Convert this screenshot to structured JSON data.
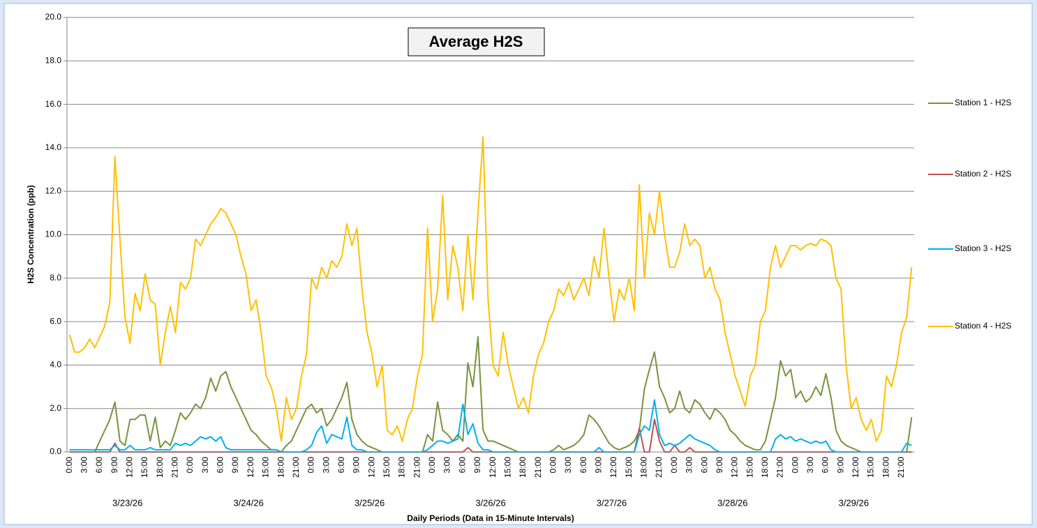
{
  "chart_data": {
    "type": "line",
    "title": "Average H2S",
    "y_label": "H2S Concentration (ppb)",
    "x_label": "Daily Periods (Data in 15-Minute Intervals)",
    "categories": [
      "0:00",
      null,
      null,
      "3:00",
      null,
      null,
      "6:00",
      null,
      null,
      "9:00",
      null,
      null,
      "12:00",
      null,
      null,
      "15:00",
      null,
      null,
      "18:00",
      null,
      null,
      "21:00",
      null,
      null,
      "0:00",
      null,
      null,
      "3:00",
      null,
      null,
      "6:00",
      null,
      null,
      "9:00",
      null,
      null,
      "12:00",
      null,
      null,
      "15:00",
      null,
      null,
      "18:00",
      null,
      null,
      "21:00",
      null,
      null,
      "0:00",
      null,
      null,
      "3:00",
      null,
      null,
      "6:00",
      null,
      null,
      "9:00",
      null,
      null,
      "12:00",
      null,
      null,
      "15:00",
      null,
      null,
      "18:00",
      null,
      null,
      "21:00",
      null,
      null,
      "0:00",
      null,
      null,
      "3:00",
      null,
      null,
      "6:00",
      null,
      null,
      "9:00",
      null,
      null,
      "12:00",
      null,
      null,
      "15:00",
      null,
      null,
      "18:00",
      null,
      null,
      "21:00",
      null,
      null,
      "0:00",
      null,
      null,
      "3:00",
      null,
      null,
      "6:00",
      null,
      null,
      "9:00",
      null,
      null,
      "12:00",
      null,
      null,
      "15:00",
      null,
      null,
      "18:00",
      null,
      null,
      "21:00",
      null,
      null,
      "0:00",
      null,
      null,
      "3:00",
      null,
      null,
      "6:00",
      null,
      null,
      "9:00",
      null,
      null,
      "12:00",
      null,
      null,
      "15:00",
      null,
      null,
      "18:00",
      null,
      null,
      "21:00",
      null,
      null,
      "0:00",
      null,
      null,
      "3:00",
      null,
      null,
      "6:00",
      null,
      null,
      "9:00",
      null,
      null,
      "12:00",
      null,
      null,
      "15:00",
      null,
      null,
      "18:00",
      null,
      null,
      "21:00",
      null,
      null
    ],
    "day_labels": [
      "3/23/26",
      "3/24/26",
      "3/25/26",
      "3/26/26",
      "3/27/26",
      "3/28/26",
      "3/29/26"
    ],
    "ylim": [
      0,
      20
    ],
    "yticks": [
      {
        "value": 0,
        "label": "0.0"
      },
      {
        "value": 2,
        "label": "2.0"
      },
      {
        "value": 4,
        "label": "4.0"
      },
      {
        "value": 6,
        "label": "6.0"
      },
      {
        "value": 8,
        "label": "8.0"
      },
      {
        "value": 10,
        "label": "10.0"
      },
      {
        "value": 12,
        "label": "12.0"
      },
      {
        "value": 14,
        "label": "14.0"
      },
      {
        "value": 16,
        "label": "16.0"
      },
      {
        "value": 18,
        "label": "18.0"
      },
      {
        "value": 20,
        "label": "20.0"
      }
    ],
    "grid": true,
    "legend": "right",
    "series": [
      {
        "name": "Station 1 - H2S",
        "color": "#77933c",
        "values": [
          0,
          0,
          0,
          0,
          0,
          0,
          0.5,
          1.0,
          1.5,
          2.3,
          0.5,
          0.3,
          1.5,
          1.5,
          1.7,
          1.7,
          0.5,
          1.6,
          0.2,
          0.5,
          0.3,
          1.0,
          1.8,
          1.5,
          1.8,
          2.2,
          2.0,
          2.5,
          3.4,
          2.8,
          3.5,
          3.7,
          3.0,
          2.5,
          2.0,
          1.5,
          1.0,
          0.8,
          0.5,
          0.3,
          0.1,
          0.1,
          0,
          0.3,
          0.5,
          1.0,
          1.5,
          2.0,
          2.2,
          1.8,
          2.0,
          1.2,
          1.5,
          2.0,
          2.5,
          3.2,
          1.5,
          0.8,
          0.5,
          0.3,
          0.2,
          0.1,
          0,
          0,
          0,
          0,
          0,
          0,
          0,
          0,
          0,
          0.8,
          0.5,
          2.3,
          1.0,
          0.8,
          0.5,
          0.8,
          0.5,
          4.1,
          3.0,
          5.3,
          1.0,
          0.5,
          0.5,
          0.4,
          0.3,
          0.2,
          0.1,
          0,
          0,
          0,
          0,
          0,
          0,
          0,
          0.1,
          0.3,
          0.1,
          0.2,
          0.3,
          0.5,
          0.8,
          1.7,
          1.5,
          1.2,
          0.8,
          0.4,
          0.2,
          0.1,
          0.2,
          0.3,
          0.5,
          1.0,
          2.9,
          3.8,
          4.6,
          3.0,
          2.5,
          1.8,
          2.0,
          2.8,
          2.0,
          1.8,
          2.4,
          2.2,
          1.8,
          1.5,
          2.0,
          1.8,
          1.5,
          1.0,
          0.8,
          0.5,
          0.3,
          0.2,
          0.1,
          0.1,
          0.5,
          1.5,
          2.5,
          4.2,
          3.5,
          3.8,
          2.5,
          2.8,
          2.3,
          2.5,
          3.0,
          2.6,
          3.6,
          2.5,
          1.0,
          0.5,
          0.3,
          0.2,
          0.1,
          0,
          0,
          0,
          0,
          0,
          0,
          0,
          0,
          0,
          0,
          1.6
        ]
      },
      {
        "name": "Station 2 - H2S",
        "color": "#c0504d",
        "values": [
          0,
          0,
          0,
          0,
          0,
          0,
          0,
          0,
          0,
          0.4,
          0,
          0,
          0,
          0,
          0,
          0,
          0,
          0,
          0,
          0,
          0,
          0,
          0,
          0,
          0,
          0,
          0,
          0,
          0,
          0,
          0,
          0,
          0,
          0,
          0,
          0,
          0,
          0,
          0,
          0,
          0,
          0,
          0,
          0,
          0,
          0,
          0,
          0,
          0,
          0,
          0,
          0,
          0,
          0,
          0,
          0,
          0,
          0,
          0,
          0,
          0,
          0,
          0,
          0,
          0,
          0,
          0,
          0,
          0,
          0,
          0,
          0,
          0,
          0,
          0,
          0,
          0,
          0,
          0,
          0.2,
          0,
          0,
          0,
          0,
          0,
          0,
          0,
          0,
          0,
          0,
          0,
          0,
          0,
          0,
          0,
          0,
          0,
          0,
          0,
          0,
          0,
          0,
          0,
          0,
          0,
          0,
          0,
          0,
          0,
          0,
          0,
          0,
          0,
          1.1,
          0,
          0,
          1.5,
          0.5,
          0,
          0,
          0.3,
          0,
          0,
          0.2,
          0,
          0,
          0,
          0,
          0,
          0,
          0,
          0,
          0,
          0,
          0,
          0,
          0,
          0,
          0,
          0,
          0,
          0,
          0,
          0,
          0,
          0,
          0,
          0,
          0,
          0,
          0,
          0,
          0,
          0,
          0,
          0,
          0,
          0,
          0,
          0,
          0,
          0,
          0,
          0,
          0,
          0,
          0,
          0
        ]
      },
      {
        "name": "Station 3 - H2S",
        "color": "#00b0f0",
        "values": [
          0.1,
          0.1,
          0.1,
          0.1,
          0.1,
          0.1,
          0.1,
          0.1,
          0.1,
          0.3,
          0.1,
          0.1,
          0.3,
          0.1,
          0.1,
          0.1,
          0.2,
          0.1,
          0.1,
          0.1,
          0.1,
          0.4,
          0.3,
          0.4,
          0.3,
          0.5,
          0.7,
          0.6,
          0.7,
          0.5,
          0.7,
          0.2,
          0.1,
          0.1,
          0.1,
          0.1,
          0.1,
          0.1,
          0.1,
          0.1,
          0.1,
          0.1,
          0,
          0,
          0,
          0,
          0,
          0.1,
          0.3,
          0.9,
          1.2,
          0.4,
          0.8,
          0.7,
          0.6,
          1.6,
          0.3,
          0.1,
          0.1,
          0,
          0,
          0,
          0,
          0,
          0,
          0,
          0,
          0,
          0,
          0,
          0,
          0.1,
          0.3,
          0.5,
          0.5,
          0.4,
          0.5,
          0.6,
          2.2,
          0.8,
          1.3,
          0.4,
          0.1,
          0.1,
          0,
          0,
          0,
          0,
          0,
          0,
          0,
          0,
          0,
          0,
          0,
          0,
          0,
          0,
          0,
          0,
          0,
          0,
          0,
          0,
          0,
          0.2,
          0,
          0,
          0,
          0,
          0,
          0,
          0,
          0.8,
          1.2,
          1.0,
          2.4,
          0.8,
          0.3,
          0.4,
          0.3,
          0.4,
          0.6,
          0.8,
          0.6,
          0.5,
          0.4,
          0.3,
          0.1,
          0,
          0,
          0,
          0,
          0,
          0,
          0,
          0,
          0,
          0,
          0,
          0.6,
          0.8,
          0.6,
          0.7,
          0.5,
          0.6,
          0.5,
          0.4,
          0.5,
          0.4,
          0.5,
          0.1,
          0,
          0,
          0,
          0,
          0,
          0,
          0,
          0,
          0,
          0,
          0,
          0,
          0,
          0,
          0.4,
          0.3
        ]
      },
      {
        "name": "Station 4 - H2S",
        "color": "#ffc000",
        "values": [
          5.4,
          4.6,
          4.6,
          4.8,
          5.2,
          4.8,
          5.3,
          5.8,
          6.9,
          13.6,
          9.8,
          6.2,
          5.0,
          7.3,
          6.5,
          8.2,
          7.0,
          6.8,
          4.0,
          5.5,
          6.7,
          5.5,
          7.8,
          7.5,
          8.0,
          9.8,
          9.5,
          10.0,
          10.5,
          10.8,
          11.2,
          11.0,
          10.5,
          10.0,
          9.0,
          8.2,
          6.5,
          7.0,
          5.5,
          3.5,
          3.0,
          2.0,
          0.5,
          2.5,
          1.5,
          2.0,
          3.5,
          4.5,
          8.0,
          7.5,
          8.5,
          8.0,
          8.8,
          8.5,
          9.0,
          10.5,
          9.5,
          10.3,
          7.5,
          5.5,
          4.5,
          3.0,
          4.0,
          1.0,
          0.8,
          1.2,
          0.5,
          1.5,
          2.0,
          3.5,
          4.5,
          10.3,
          6.0,
          7.5,
          11.8,
          7.0,
          9.5,
          8.5,
          6.5,
          10.0,
          7.0,
          11.0,
          14.5,
          7.0,
          4.0,
          3.5,
          5.5,
          4.0,
          3.0,
          2.0,
          2.5,
          1.8,
          3.5,
          4.5,
          5.0,
          6.0,
          6.5,
          7.5,
          7.2,
          7.8,
          7.0,
          7.5,
          8.0,
          7.2,
          9.0,
          8.0,
          10.3,
          8.0,
          6.0,
          7.5,
          7.0,
          8.0,
          6.5,
          12.3,
          8.0,
          11.0,
          10.0,
          12.0,
          10.0,
          8.5,
          8.5,
          9.2,
          10.5,
          9.5,
          9.8,
          9.5,
          8.0,
          8.5,
          7.5,
          7.0,
          5.5,
          4.5,
          3.5,
          2.8,
          2.1,
          3.5,
          4.0,
          6.0,
          6.5,
          8.5,
          9.5,
          8.5,
          9.0,
          9.5,
          9.5,
          9.3,
          9.5,
          9.6,
          9.5,
          9.8,
          9.7,
          9.5,
          8.0,
          7.5,
          4.0,
          2.0,
          2.5,
          1.5,
          1.0,
          1.5,
          0.5,
          1.0,
          3.5,
          3.0,
          4.0,
          5.5,
          6.2,
          8.5
        ]
      }
    ]
  }
}
